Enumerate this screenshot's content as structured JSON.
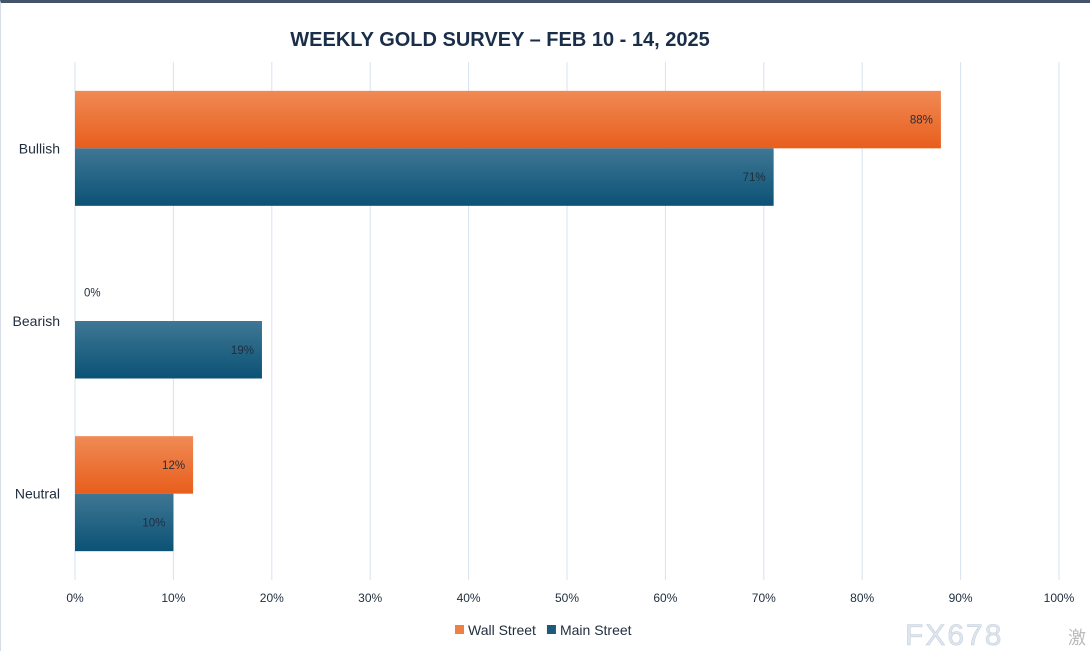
{
  "chart_data": {
    "type": "bar",
    "orientation": "horizontal",
    "title": "WEEKLY GOLD SURVEY – FEB 10 - 14, 2025",
    "categories": [
      "Bullish",
      "Bearish",
      "Neutral"
    ],
    "series": [
      {
        "name": "Wall Street",
        "values": [
          88,
          0,
          12
        ],
        "color": "#f07f45"
      },
      {
        "name": "Main Street",
        "values": [
          71,
          19,
          10
        ],
        "color": "#1d5a7a"
      }
    ],
    "data_labels": [
      [
        "88%",
        "0%",
        "12%"
      ],
      [
        "71%",
        "19%",
        "10%"
      ]
    ],
    "xlim": [
      0,
      100
    ],
    "x_ticks": [
      "0%",
      "10%",
      "20%",
      "30%",
      "40%",
      "50%",
      "60%",
      "70%",
      "80%",
      "90%",
      "100%"
    ],
    "grid": "vertical",
    "legend_position": "bottom"
  },
  "watermark": {
    "text": "FX678",
    "subtext": "激"
  }
}
